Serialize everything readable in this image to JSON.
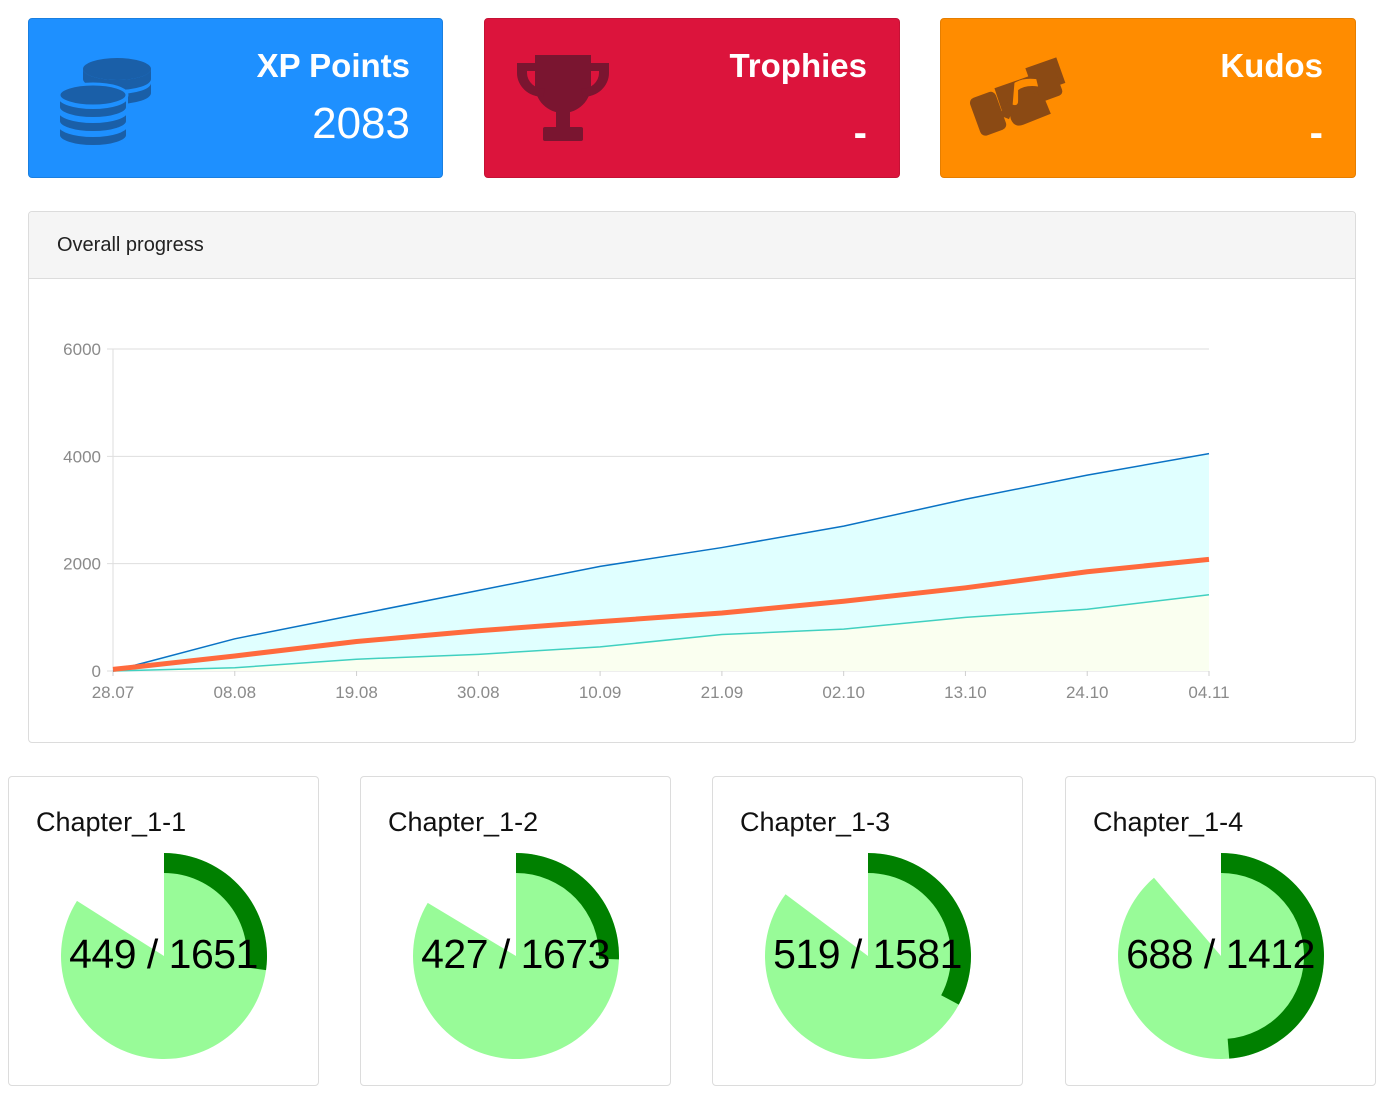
{
  "stats": {
    "xp": {
      "label": "XP Points",
      "value": "2083",
      "color": "#1e90ff",
      "icon": "coins-icon"
    },
    "trophies": {
      "label": "Trophies",
      "value": "-",
      "color": "#dc143c",
      "icon": "trophy-icon"
    },
    "kudos": {
      "label": "Kudos",
      "value": "-",
      "color": "#ff8c00",
      "icon": "handshake-icon"
    }
  },
  "progress_panel": {
    "title": "Overall progress"
  },
  "chart_data": {
    "type": "area",
    "title": "",
    "xlabel": "",
    "ylabel": "",
    "x_ticks": [
      "28.07",
      "08.08",
      "19.08",
      "30.08",
      "10.09",
      "21.09",
      "02.10",
      "13.10",
      "24.10",
      "04.11"
    ],
    "y_ticks": [
      0,
      2000,
      4000,
      6000
    ],
    "ylim": [
      0,
      6000
    ],
    "grid": true,
    "x": [
      "28.07",
      "08.08",
      "19.08",
      "30.08",
      "10.09",
      "21.09",
      "02.10",
      "13.10",
      "24.10",
      "04.11"
    ],
    "series": [
      {
        "color": "#0a72c4",
        "fill": "#e0ffff",
        "values": [
          0,
          600,
          1050,
          1500,
          1950,
          2300,
          2700,
          3200,
          3650,
          4050
        ]
      },
      {
        "color": "#ff6a3d",
        "fill": "none",
        "values": [
          30,
          280,
          550,
          750,
          920,
          1080,
          1300,
          1550,
          1850,
          2080
        ]
      },
      {
        "color": "#40d0c0",
        "fill": "#fafff0",
        "values": [
          0,
          60,
          220,
          310,
          450,
          680,
          780,
          1000,
          1150,
          1420
        ]
      }
    ]
  },
  "chapters": [
    {
      "title": "Chapter_1-1",
      "text": "449 / 1651",
      "done": 449,
      "total": 1651
    },
    {
      "title": "Chapter_1-2",
      "text": "427 / 1673",
      "done": 427,
      "total": 1673
    },
    {
      "title": "Chapter_1-3",
      "text": "519 / 1581",
      "done": 519,
      "total": 1581
    },
    {
      "title": "Chapter_1-4",
      "text": "688 / 1412",
      "done": 688,
      "total": 1412
    }
  ],
  "chapter_colors": {
    "ring": "#008000",
    "fill": "#98fb98"
  }
}
